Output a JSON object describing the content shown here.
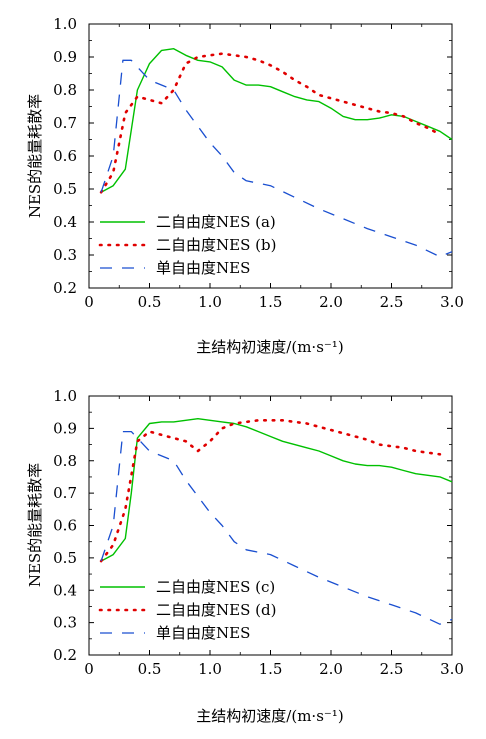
{
  "colors": {
    "two_dof_solid": "#00c000",
    "two_dof_dotted": "#e00000",
    "single_dof": "#1a4fd0",
    "axis": "#000000"
  },
  "chart_data": [
    {
      "type": "line",
      "xlabel": "主结构初速度/(m·s⁻¹)",
      "ylabel": "NES的能量耗散率",
      "xlim": [
        0,
        3.0
      ],
      "ylim": [
        0.2,
        1.0
      ],
      "xticks": [
        "0",
        "0.5",
        "1.0",
        "1.5",
        "2.0",
        "2.5",
        "3.0"
      ],
      "yticks": [
        "0.2",
        "0.3",
        "0.4",
        "0.5",
        "0.6",
        "0.7",
        "0.8",
        "0.9",
        "1.0"
      ],
      "legend_position": "bottom-left",
      "series": [
        {
          "name": "二自由度NES (a)",
          "style": "solid",
          "x": [
            0.1,
            0.2,
            0.3,
            0.4,
            0.5,
            0.6,
            0.7,
            0.8,
            0.9,
            1.0,
            1.1,
            1.2,
            1.3,
            1.4,
            1.5,
            1.6,
            1.7,
            1.8,
            1.9,
            2.0,
            2.1,
            2.2,
            2.3,
            2.4,
            2.5,
            2.6,
            2.7,
            2.8,
            2.9,
            3.0
          ],
          "y": [
            0.49,
            0.51,
            0.56,
            0.8,
            0.88,
            0.92,
            0.925,
            0.905,
            0.89,
            0.885,
            0.87,
            0.83,
            0.815,
            0.815,
            0.81,
            0.795,
            0.78,
            0.77,
            0.765,
            0.745,
            0.72,
            0.71,
            0.71,
            0.715,
            0.725,
            0.72,
            0.705,
            0.69,
            0.675,
            0.65
          ]
        },
        {
          "name": "二自由度NES (b)",
          "style": "dotted",
          "x": [
            0.1,
            0.2,
            0.3,
            0.4,
            0.5,
            0.6,
            0.7,
            0.8,
            0.9,
            1.0,
            1.1,
            1.2,
            1.3,
            1.4,
            1.5,
            1.6,
            1.7,
            1.8,
            1.9,
            2.0,
            2.1,
            2.2,
            2.3,
            2.4,
            2.5,
            2.6,
            2.7,
            2.8,
            2.9
          ],
          "y": [
            0.49,
            0.55,
            0.73,
            0.78,
            0.77,
            0.76,
            0.8,
            0.88,
            0.9,
            0.905,
            0.91,
            0.905,
            0.9,
            0.89,
            0.875,
            0.855,
            0.83,
            0.81,
            0.785,
            0.775,
            0.765,
            0.755,
            0.745,
            0.735,
            0.73,
            0.72,
            0.7,
            0.685,
            0.665
          ]
        },
        {
          "name": "单自由度NES",
          "style": "dashed",
          "x": [
            0.1,
            0.2,
            0.28,
            0.35,
            0.5,
            0.7,
            0.8,
            0.9,
            1.0,
            1.1,
            1.2,
            1.3,
            1.5,
            1.7,
            1.9,
            2.1,
            2.3,
            2.5,
            2.7,
            2.9,
            3.0
          ],
          "y": [
            0.49,
            0.6,
            0.89,
            0.89,
            0.83,
            0.8,
            0.74,
            0.69,
            0.64,
            0.6,
            0.55,
            0.525,
            0.51,
            0.475,
            0.44,
            0.41,
            0.38,
            0.355,
            0.33,
            0.295,
            0.31
          ]
        }
      ]
    },
    {
      "type": "line",
      "xlabel": "主结构初速度/(m·s⁻¹)",
      "ylabel": "NES的能量耗散率",
      "xlim": [
        0,
        3.0
      ],
      "ylim": [
        0.2,
        1.0
      ],
      "xticks": [
        "0",
        "0.5",
        "1.0",
        "1.5",
        "2.0",
        "2.5",
        "3.0"
      ],
      "yticks": [
        "0.2",
        "0.3",
        "0.4",
        "0.5",
        "0.6",
        "0.7",
        "0.8",
        "0.9",
        "1.0"
      ],
      "legend_position": "bottom-left",
      "series": [
        {
          "name": "二自由度NES (c)",
          "style": "solid",
          "x": [
            0.1,
            0.2,
            0.3,
            0.35,
            0.4,
            0.5,
            0.6,
            0.7,
            0.8,
            0.9,
            1.0,
            1.1,
            1.2,
            1.3,
            1.4,
            1.5,
            1.6,
            1.7,
            1.8,
            1.9,
            2.0,
            2.1,
            2.2,
            2.3,
            2.4,
            2.5,
            2.6,
            2.7,
            2.8,
            2.9,
            3.0
          ],
          "y": [
            0.49,
            0.51,
            0.56,
            0.7,
            0.87,
            0.915,
            0.92,
            0.92,
            0.925,
            0.93,
            0.925,
            0.92,
            0.915,
            0.905,
            0.89,
            0.875,
            0.86,
            0.85,
            0.84,
            0.83,
            0.815,
            0.8,
            0.79,
            0.785,
            0.785,
            0.78,
            0.77,
            0.76,
            0.755,
            0.75,
            0.735
          ]
        },
        {
          "name": "二自由度NES (d)",
          "style": "dotted",
          "x": [
            0.1,
            0.2,
            0.3,
            0.4,
            0.5,
            0.6,
            0.7,
            0.8,
            0.9,
            1.0,
            1.1,
            1.2,
            1.3,
            1.4,
            1.5,
            1.6,
            1.7,
            1.8,
            1.9,
            2.0,
            2.1,
            2.2,
            2.3,
            2.4,
            2.5,
            2.6,
            2.7,
            2.8,
            2.9
          ],
          "y": [
            0.49,
            0.54,
            0.65,
            0.86,
            0.89,
            0.88,
            0.87,
            0.86,
            0.83,
            0.86,
            0.9,
            0.915,
            0.92,
            0.925,
            0.925,
            0.925,
            0.92,
            0.915,
            0.905,
            0.895,
            0.885,
            0.875,
            0.865,
            0.85,
            0.845,
            0.84,
            0.83,
            0.825,
            0.82
          ]
        },
        {
          "name": "单自由度NES",
          "style": "dashed",
          "x": [
            0.1,
            0.2,
            0.28,
            0.35,
            0.5,
            0.7,
            0.8,
            0.9,
            1.0,
            1.1,
            1.2,
            1.3,
            1.5,
            1.7,
            1.9,
            2.1,
            2.3,
            2.5,
            2.7,
            2.9,
            3.0
          ],
          "y": [
            0.49,
            0.6,
            0.89,
            0.89,
            0.83,
            0.8,
            0.74,
            0.69,
            0.64,
            0.6,
            0.55,
            0.525,
            0.51,
            0.475,
            0.44,
            0.41,
            0.38,
            0.355,
            0.33,
            0.295,
            0.31
          ]
        }
      ]
    }
  ]
}
